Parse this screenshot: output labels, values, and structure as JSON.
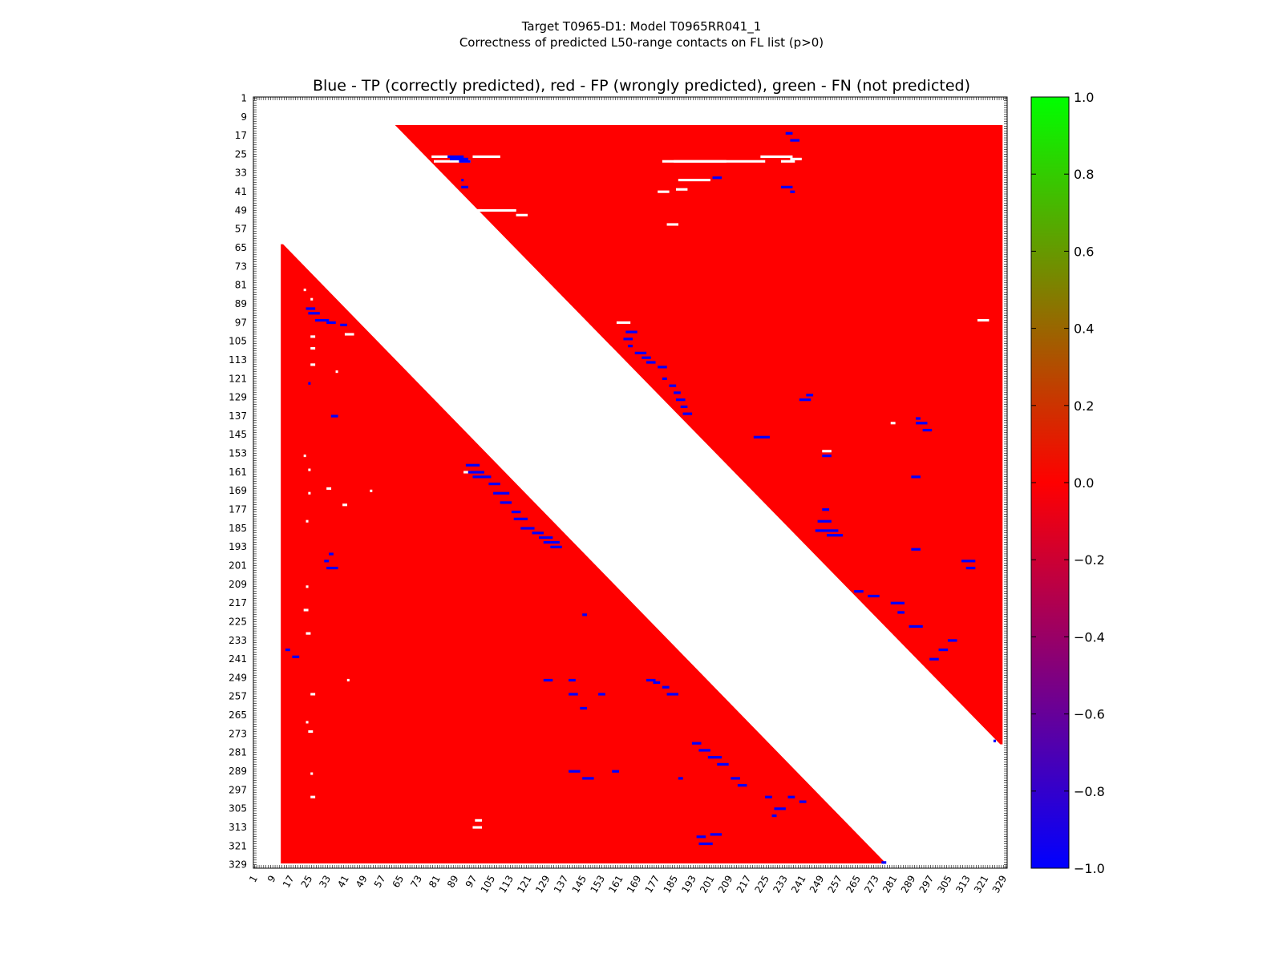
{
  "header": {
    "title_line1": "Target T0965-D1: Model T0965RR041_1",
    "title_line2": "Correctness of predicted L50-range contacts on FL list (p>0)"
  },
  "chart_data": {
    "type": "heatmap",
    "title": "Blue - TP (correctly predicted), red - FP (wrongly predicted), green - FN (not predicted)",
    "xlabel": "",
    "ylabel": "",
    "axis_range": [
      1,
      330
    ],
    "tick_labels": [
      "1",
      "9",
      "17",
      "25",
      "33",
      "41",
      "49",
      "57",
      "65",
      "73",
      "81",
      "89",
      "97",
      "105",
      "113",
      "121",
      "129",
      "137",
      "145",
      "153",
      "161",
      "169",
      "177",
      "185",
      "193",
      "201",
      "209",
      "217",
      "225",
      "233",
      "241",
      "249",
      "257",
      "265",
      "273",
      "281",
      "289",
      "297",
      "305",
      "313",
      "321",
      "329"
    ],
    "colors": {
      "fp": "#ff0000",
      "tp": "#0000ff",
      "fn": "#00ff00",
      "background": "#ffffff"
    },
    "regions": [
      {
        "name": "upper-triangle",
        "class": "FP",
        "value": 0.0,
        "row_range": [
          13,
          277
        ],
        "col_start_at_row13": 63,
        "col_end": 328
      },
      {
        "name": "lower-triangle",
        "class": "FP",
        "value": 0.0,
        "row_range": [
          64,
          328
        ],
        "col_start": 13,
        "col_end_at_row328": 277
      }
    ],
    "tp_runs": [
      [
        26,
        86,
        92
      ],
      [
        27,
        87,
        94
      ],
      [
        28,
        91,
        95
      ],
      [
        36,
        92,
        92
      ],
      [
        39,
        92,
        94
      ],
      [
        16,
        234,
        236
      ],
      [
        19,
        236,
        239
      ],
      [
        35,
        202,
        205
      ],
      [
        39,
        232,
        236
      ],
      [
        41,
        236,
        237
      ],
      [
        101,
        164,
        168
      ],
      [
        104,
        163,
        166
      ],
      [
        107,
        165,
        166
      ],
      [
        110,
        168,
        172
      ],
      [
        112,
        171,
        174
      ],
      [
        114,
        173,
        176
      ],
      [
        116,
        178,
        181
      ],
      [
        121,
        180,
        181
      ],
      [
        124,
        183,
        185
      ],
      [
        127,
        185,
        187
      ],
      [
        130,
        186,
        189
      ],
      [
        133,
        188,
        190
      ],
      [
        136,
        189,
        192
      ],
      [
        128,
        243,
        245
      ],
      [
        130,
        240,
        244
      ],
      [
        146,
        220,
        226
      ],
      [
        154,
        250,
        253
      ],
      [
        138,
        291,
        292
      ],
      [
        140,
        291,
        295
      ],
      [
        143,
        294,
        297
      ],
      [
        163,
        289,
        292
      ],
      [
        177,
        250,
        252
      ],
      [
        182,
        248,
        253
      ],
      [
        186,
        247,
        256
      ],
      [
        188,
        252,
        258
      ],
      [
        194,
        289,
        292
      ],
      [
        199,
        311,
        316
      ],
      [
        202,
        313,
        316
      ],
      [
        212,
        264,
        267
      ],
      [
        214,
        270,
        274
      ],
      [
        217,
        280,
        285
      ],
      [
        221,
        283,
        285
      ],
      [
        227,
        288,
        293
      ],
      [
        233,
        305,
        308
      ],
      [
        237,
        301,
        304
      ],
      [
        241,
        297,
        300
      ],
      [
        276,
        325,
        325
      ],
      [
        91,
        24,
        27
      ],
      [
        93,
        25,
        29
      ],
      [
        96,
        28,
        33
      ],
      [
        97,
        33,
        36
      ],
      [
        98,
        39,
        41
      ],
      [
        123,
        25,
        25
      ],
      [
        137,
        35,
        37
      ],
      [
        158,
        94,
        99
      ],
      [
        161,
        95,
        101
      ],
      [
        163,
        97,
        104
      ],
      [
        166,
        104,
        108
      ],
      [
        170,
        106,
        112
      ],
      [
        174,
        109,
        113
      ],
      [
        178,
        114,
        117
      ],
      [
        181,
        115,
        120
      ],
      [
        185,
        118,
        123
      ],
      [
        187,
        123,
        127
      ],
      [
        189,
        126,
        131
      ],
      [
        191,
        128,
        134
      ],
      [
        193,
        131,
        135
      ],
      [
        196,
        34,
        35
      ],
      [
        199,
        32,
        33
      ],
      [
        202,
        33,
        37
      ],
      [
        222,
        145,
        146
      ],
      [
        237,
        15,
        16
      ],
      [
        240,
        18,
        20
      ],
      [
        250,
        173,
        176
      ],
      [
        251,
        176,
        178
      ],
      [
        253,
        180,
        182
      ],
      [
        256,
        182,
        186
      ],
      [
        250,
        139,
        141
      ],
      [
        256,
        152,
        154
      ],
      [
        262,
        144,
        146
      ],
      [
        256,
        139,
        142
      ],
      [
        250,
        128,
        131
      ],
      [
        277,
        193,
        196
      ],
      [
        280,
        196,
        200
      ],
      [
        283,
        200,
        205
      ],
      [
        286,
        204,
        208
      ],
      [
        289,
        158,
        160
      ],
      [
        292,
        210,
        213
      ],
      [
        295,
        213,
        216
      ],
      [
        300,
        225,
        227
      ],
      [
        305,
        229,
        233
      ],
      [
        308,
        228,
        229
      ],
      [
        317,
        195,
        198
      ],
      [
        320,
        196,
        201
      ],
      [
        316,
        201,
        205
      ],
      [
        289,
        139,
        143
      ],
      [
        292,
        145,
        149
      ],
      [
        328,
        276,
        277
      ],
      [
        302,
        240,
        242
      ],
      [
        300,
        235,
        237
      ],
      [
        292,
        187,
        188
      ]
    ],
    "empty_runs": [
      [
        26,
        79,
        86
      ],
      [
        26,
        97,
        108
      ],
      [
        28,
        80,
        95
      ],
      [
        26,
        223,
        236
      ],
      [
        27,
        236,
        240
      ],
      [
        28,
        232,
        237
      ],
      [
        28,
        180,
        224
      ],
      [
        28,
        185,
        207
      ],
      [
        36,
        187,
        200
      ],
      [
        40,
        186,
        190
      ],
      [
        41,
        178,
        182
      ],
      [
        49,
        93,
        115
      ],
      [
        51,
        116,
        120
      ],
      [
        49,
        98,
        100
      ],
      [
        55,
        182,
        186
      ],
      [
        51,
        87,
        90
      ],
      [
        97,
        160,
        165
      ],
      [
        96,
        318,
        322
      ],
      [
        140,
        280,
        281
      ],
      [
        152,
        250,
        253
      ],
      [
        103,
        26,
        27
      ],
      [
        108,
        26,
        27
      ],
      [
        115,
        26,
        27
      ],
      [
        102,
        41,
        44
      ],
      [
        83,
        23,
        23
      ],
      [
        87,
        26,
        26
      ],
      [
        154,
        23,
        23
      ],
      [
        160,
        25,
        25
      ],
      [
        170,
        25,
        25
      ],
      [
        175,
        40,
        41
      ],
      [
        168,
        33,
        34
      ],
      [
        182,
        24,
        24
      ],
      [
        210,
        24,
        24
      ],
      [
        220,
        23,
        24
      ],
      [
        230,
        24,
        25
      ],
      [
        250,
        42,
        42
      ],
      [
        256,
        26,
        27
      ],
      [
        268,
        24,
        24
      ],
      [
        272,
        25,
        26
      ],
      [
        290,
        26,
        26
      ],
      [
        300,
        26,
        27
      ],
      [
        310,
        98,
        100
      ],
      [
        313,
        97,
        100
      ],
      [
        169,
        52,
        52
      ],
      [
        118,
        37,
        37
      ],
      [
        161,
        93,
        95
      ]
    ]
  },
  "colorbar": {
    "label_min": "−1.0",
    "ticks": [
      {
        "value": 1.0,
        "label": "1.0"
      },
      {
        "value": 0.8,
        "label": "0.8"
      },
      {
        "value": 0.6,
        "label": "0.6"
      },
      {
        "value": 0.4,
        "label": "0.4"
      },
      {
        "value": 0.2,
        "label": "0.2"
      },
      {
        "value": 0.0,
        "label": "0.0"
      },
      {
        "value": -0.2,
        "label": "−0.2"
      },
      {
        "value": -0.4,
        "label": "−0.4"
      },
      {
        "value": -0.6,
        "label": "−0.6"
      },
      {
        "value": -0.8,
        "label": "−0.8"
      },
      {
        "value": -1.0,
        "label": "−1.0"
      }
    ],
    "gradient": [
      "#00ff00",
      "#ff0000",
      "#0000ff"
    ]
  }
}
